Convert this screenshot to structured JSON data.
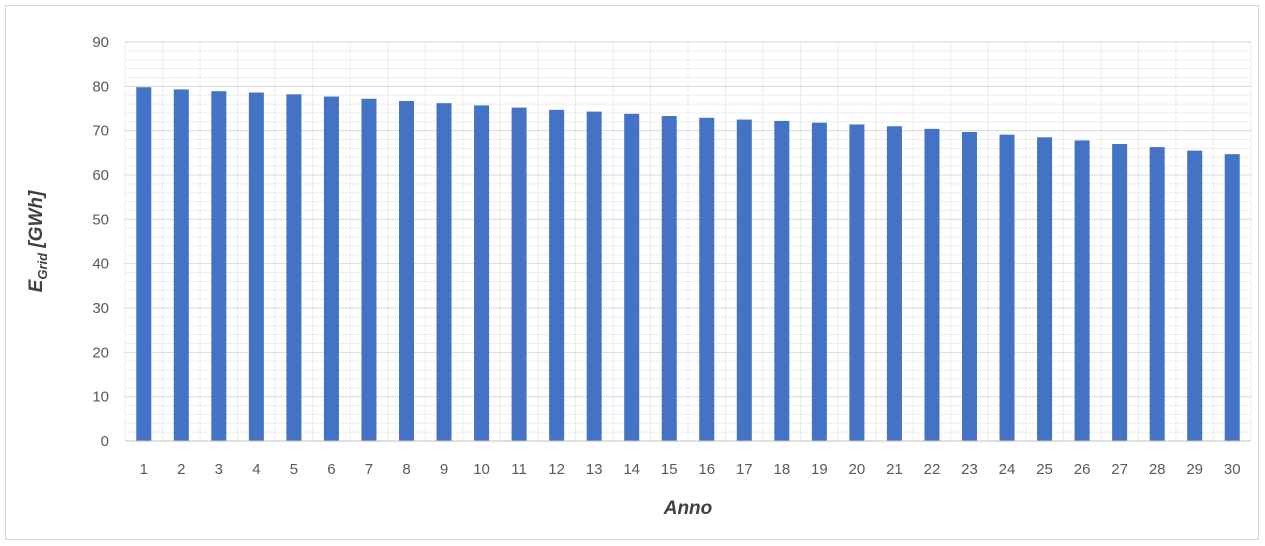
{
  "chart_data": {
    "type": "bar",
    "title": "",
    "xlabel": "Anno",
    "ylabel": {
      "main": "E",
      "subscript": "Grid",
      "unit": " [GWh]"
    },
    "categories": [
      "1",
      "2",
      "3",
      "4",
      "5",
      "6",
      "7",
      "8",
      "9",
      "10",
      "11",
      "12",
      "13",
      "14",
      "15",
      "16",
      "17",
      "18",
      "19",
      "20",
      "21",
      "22",
      "23",
      "24",
      "25",
      "26",
      "27",
      "28",
      "29",
      "30"
    ],
    "values": [
      79.8,
      79.3,
      78.9,
      78.6,
      78.2,
      77.7,
      77.2,
      76.7,
      76.2,
      75.7,
      75.2,
      74.7,
      74.3,
      73.8,
      73.3,
      72.9,
      72.5,
      72.2,
      71.8,
      71.4,
      71.0,
      70.4,
      69.7,
      69.1,
      68.5,
      67.8,
      67.0,
      66.3,
      65.5,
      64.7
    ],
    "ylim": [
      0,
      90
    ],
    "yticks": [
      0,
      10,
      20,
      30,
      40,
      50,
      60,
      70,
      80,
      90
    ],
    "grid": true,
    "minor_grid": true,
    "legend": false,
    "colors": {
      "bar": "#4472C4",
      "grid_major": "#d9d9d9",
      "grid_minor": "#ededed",
      "axis": "#bfbfbf"
    }
  }
}
